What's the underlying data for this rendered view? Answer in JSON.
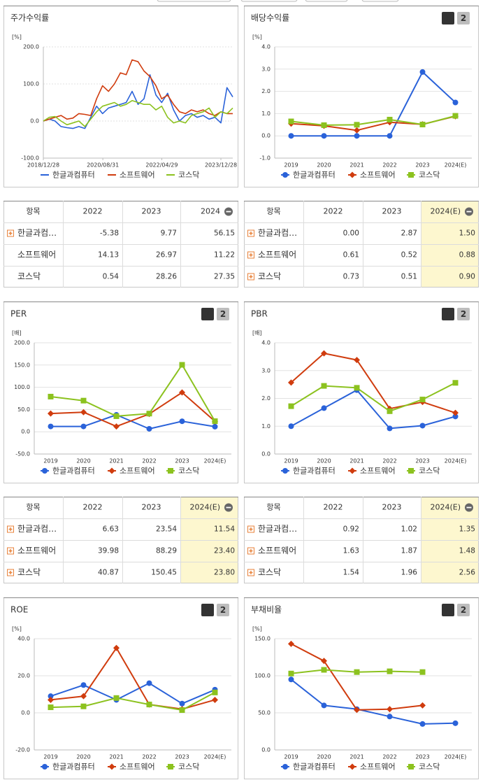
{
  "chart_data": [
    {
      "type": "line",
      "title": "주가수익률",
      "unit": "[%]",
      "x": [
        "2018/12/28",
        "2019/02/28",
        "2019/04/28",
        "2019/06/28",
        "2019/08/28",
        "2019/10/28",
        "2019/12/28",
        "2020/02/28",
        "2020/04/28",
        "2020/06/28",
        "2020/08/28",
        "2020/10/28",
        "2020/12/28",
        "2021/02/28",
        "2021/04/28",
        "2021/06/28",
        "2021/08/28",
        "2021/10/28",
        "2021/12/28",
        "2022/02/28",
        "2022/04/28",
        "2022/06/28",
        "2022/08/28",
        "2022/10/28",
        "2022/12/28",
        "2023/02/28",
        "2023/04/28",
        "2023/06/28",
        "2023/08/28",
        "2023/10/28",
        "2023/12/28",
        "2024/02/28",
        "2024/04/28"
      ],
      "xlim": [
        "2018/12/28",
        "2024/04/28"
      ],
      "xticks": [
        "2018/12/28",
        "2020/08/31",
        "2022/04/29",
        "2023/12/28"
      ],
      "ylim": [
        -100,
        200
      ],
      "yticks": [
        {
          "value": -100,
          "label": "-100.0"
        },
        {
          "value": 0,
          "label": "0.0"
        },
        {
          "value": 100,
          "label": "100.0"
        },
        {
          "value": 200,
          "label": "200.0"
        }
      ],
      "grid": true,
      "series": [
        {
          "name": "한글과컴퓨터",
          "color": "#2a62d9",
          "values": [
            0,
            5,
            0,
            -15,
            -18,
            -20,
            -15,
            -20,
            10,
            40,
            20,
            35,
            40,
            45,
            50,
            80,
            45,
            60,
            125,
            70,
            50,
            75,
            30,
            0,
            15,
            20,
            10,
            15,
            5,
            10,
            -5,
            90,
            65
          ]
        },
        {
          "name": "소프트웨어",
          "color": "#d03c0e",
          "values": [
            0,
            5,
            10,
            15,
            5,
            8,
            20,
            18,
            15,
            60,
            95,
            80,
            100,
            130,
            125,
            165,
            160,
            135,
            120,
            95,
            60,
            70,
            45,
            25,
            20,
            30,
            25,
            30,
            20,
            15,
            25,
            20,
            20
          ]
        },
        {
          "name": "코스닥",
          "color": "#8cc21f",
          "values": [
            0,
            10,
            12,
            0,
            -10,
            -5,
            0,
            -15,
            5,
            25,
            40,
            45,
            50,
            40,
            45,
            55,
            50,
            45,
            45,
            30,
            40,
            10,
            -5,
            0,
            -5,
            15,
            20,
            25,
            35,
            10,
            25,
            20,
            35
          ]
        }
      ]
    },
    {
      "type": "line",
      "title": "배당수익률",
      "unit": "[%]",
      "buttons": [
        "1",
        "2"
      ],
      "categories": [
        "2019",
        "2020",
        "2021",
        "2022",
        "2023",
        "2024(E)"
      ],
      "ylim": [
        -1,
        4
      ],
      "yticks": [
        {
          "value": -1,
          "label": "-1.0"
        },
        {
          "value": 0,
          "label": "0.0"
        },
        {
          "value": 1,
          "label": "1.0"
        },
        {
          "value": 2,
          "label": "2.0"
        },
        {
          "value": 3,
          "label": "3.0"
        },
        {
          "value": 4,
          "label": "4.0"
        }
      ],
      "grid": true,
      "series": [
        {
          "name": "한글과컴퓨터",
          "color": "#2a62d9",
          "marker": "circle",
          "values": [
            0,
            0,
            0,
            0,
            2.87,
            1.5
          ]
        },
        {
          "name": "소프트웨어",
          "color": "#d03c0e",
          "marker": "diamond",
          "values": [
            0.55,
            0.45,
            0.25,
            0.61,
            0.52,
            0.88
          ]
        },
        {
          "name": "코스닥",
          "color": "#8cc21f",
          "marker": "square",
          "values": [
            0.65,
            0.48,
            0.5,
            0.73,
            0.51,
            0.9
          ]
        }
      ]
    },
    {
      "type": "line",
      "title": "PER",
      "unit": "[배]",
      "buttons": [
        "1",
        "2"
      ],
      "categories": [
        "2019",
        "2020",
        "2021",
        "2022",
        "2023",
        "2024(E)"
      ],
      "ylim": [
        -50,
        200
      ],
      "yticks": [
        {
          "value": -50,
          "label": "-50.0"
        },
        {
          "value": 0,
          "label": "0.0"
        },
        {
          "value": 50,
          "label": "50.0"
        },
        {
          "value": 100,
          "label": "100.0"
        },
        {
          "value": 150,
          "label": "150.0"
        },
        {
          "value": 200,
          "label": "200.0"
        }
      ],
      "grid": true,
      "series": [
        {
          "name": "한글과컴퓨터",
          "color": "#2a62d9",
          "marker": "circle",
          "values": [
            12,
            12,
            38,
            6.63,
            23.54,
            11.54
          ]
        },
        {
          "name": "소프트웨어",
          "color": "#d03c0e",
          "marker": "diamond",
          "values": [
            41,
            44,
            12,
            39.98,
            88.29,
            23.4
          ]
        },
        {
          "name": "코스닥",
          "color": "#8cc21f",
          "marker": "square",
          "values": [
            79,
            70,
            35,
            40.87,
            150.45,
            23.8
          ]
        }
      ]
    },
    {
      "type": "line",
      "title": "PBR",
      "unit": "[배]",
      "buttons": [
        "1",
        "2"
      ],
      "categories": [
        "2019",
        "2020",
        "2021",
        "2022",
        "2023",
        "2024(E)"
      ],
      "ylim": [
        0,
        4
      ],
      "yticks": [
        {
          "value": 0,
          "label": "0.0"
        },
        {
          "value": 1,
          "label": "1.0"
        },
        {
          "value": 2,
          "label": "2.0"
        },
        {
          "value": 3,
          "label": "3.0"
        },
        {
          "value": 4,
          "label": "4.0"
        }
      ],
      "grid": true,
      "series": [
        {
          "name": "한글과컴퓨터",
          "color": "#2a62d9",
          "marker": "circle",
          "values": [
            1.0,
            1.65,
            2.3,
            0.92,
            1.02,
            1.35
          ]
        },
        {
          "name": "소프트웨어",
          "color": "#d03c0e",
          "marker": "diamond",
          "values": [
            2.57,
            3.62,
            3.38,
            1.63,
            1.87,
            1.48
          ]
        },
        {
          "name": "코스닥",
          "color": "#8cc21f",
          "marker": "square",
          "values": [
            1.72,
            2.45,
            2.38,
            1.54,
            1.96,
            2.56
          ]
        }
      ]
    },
    {
      "type": "line",
      "title": "ROE",
      "unit": "[%]",
      "buttons": [
        "1",
        "2"
      ],
      "categories": [
        "2019",
        "2020",
        "2021",
        "2022",
        "2023",
        "2024(E)"
      ],
      "ylim": [
        -20,
        40
      ],
      "yticks": [
        {
          "value": -20,
          "label": "-20.0"
        },
        {
          "value": 0,
          "label": "0.0"
        },
        {
          "value": 20,
          "label": "20.0"
        },
        {
          "value": 40,
          "label": "40.0"
        }
      ],
      "grid": true,
      "series": [
        {
          "name": "한글과컴퓨터",
          "color": "#2a62d9",
          "marker": "circle",
          "values": [
            9,
            15,
            7,
            16,
            5,
            12.5
          ]
        },
        {
          "name": "소프트웨어",
          "color": "#d03c0e",
          "marker": "diamond",
          "values": [
            7,
            9,
            35,
            4.5,
            2,
            7
          ]
        },
        {
          "name": "코스닥",
          "color": "#8cc21f",
          "marker": "square",
          "values": [
            3,
            3.5,
            8,
            4.5,
            1.5,
            11
          ]
        }
      ]
    },
    {
      "type": "line",
      "title": "부채비율",
      "unit": "[%]",
      "buttons": [
        "1",
        "2"
      ],
      "categories": [
        "2019",
        "2020",
        "2021",
        "2022",
        "2023",
        "2024(E)"
      ],
      "ylim": [
        0,
        150
      ],
      "yticks": [
        {
          "value": 0,
          "label": "0.0"
        },
        {
          "value": 50,
          "label": "50.0"
        },
        {
          "value": 100,
          "label": "100.0"
        },
        {
          "value": 150,
          "label": "150.0"
        }
      ],
      "grid": true,
      "series": [
        {
          "name": "한글과컴퓨터",
          "color": "#2a62d9",
          "marker": "circle",
          "values": [
            95,
            60,
            55,
            45,
            35,
            36
          ]
        },
        {
          "name": "소프트웨어",
          "color": "#d03c0e",
          "marker": "diamond",
          "values": [
            143,
            120,
            54,
            55,
            60,
            null
          ]
        },
        {
          "name": "코스닥",
          "color": "#8cc21f",
          "marker": "square",
          "values": [
            103,
            108,
            105,
            106,
            105,
            null
          ]
        }
      ]
    }
  ],
  "tables": [
    {
      "columns": [
        "항목",
        "2022",
        "2023",
        "2024"
      ],
      "row_icons": [
        true,
        false,
        false
      ],
      "highlight_last": false,
      "rows": [
        [
          "한글과컴…",
          "-5.38",
          "9.77",
          "56.15"
        ],
        [
          "소프트웨어",
          "14.13",
          "26.97",
          "11.22"
        ],
        [
          "코스닥",
          "0.54",
          "28.26",
          "27.35"
        ]
      ]
    },
    {
      "columns": [
        "항목",
        "2022",
        "2023",
        "2024(E)"
      ],
      "row_icons": [
        true,
        true,
        true
      ],
      "highlight_last": true,
      "rows": [
        [
          "한글과컴…",
          "0.00",
          "2.87",
          "1.50"
        ],
        [
          "소프트웨어",
          "0.61",
          "0.52",
          "0.88"
        ],
        [
          "코스닥",
          "0.73",
          "0.51",
          "0.90"
        ]
      ]
    },
    {
      "columns": [
        "항목",
        "2022",
        "2023",
        "2024(E)"
      ],
      "row_icons": [
        true,
        true,
        true
      ],
      "highlight_last": true,
      "rows": [
        [
          "한글과컴…",
          "6.63",
          "23.54",
          "11.54"
        ],
        [
          "소프트웨어",
          "39.98",
          "88.29",
          "23.40"
        ],
        [
          "코스닥",
          "40.87",
          "150.45",
          "23.80"
        ]
      ]
    },
    {
      "columns": [
        "항목",
        "2022",
        "2023",
        "2024(E)"
      ],
      "row_icons": [
        true,
        true,
        true
      ],
      "highlight_last": true,
      "rows": [
        [
          "한글과컴…",
          "0.92",
          "1.02",
          "1.35"
        ],
        [
          "소프트웨어",
          "1.63",
          "1.87",
          "1.48"
        ],
        [
          "코스닥",
          "1.54",
          "1.96",
          "2.56"
        ]
      ]
    }
  ]
}
